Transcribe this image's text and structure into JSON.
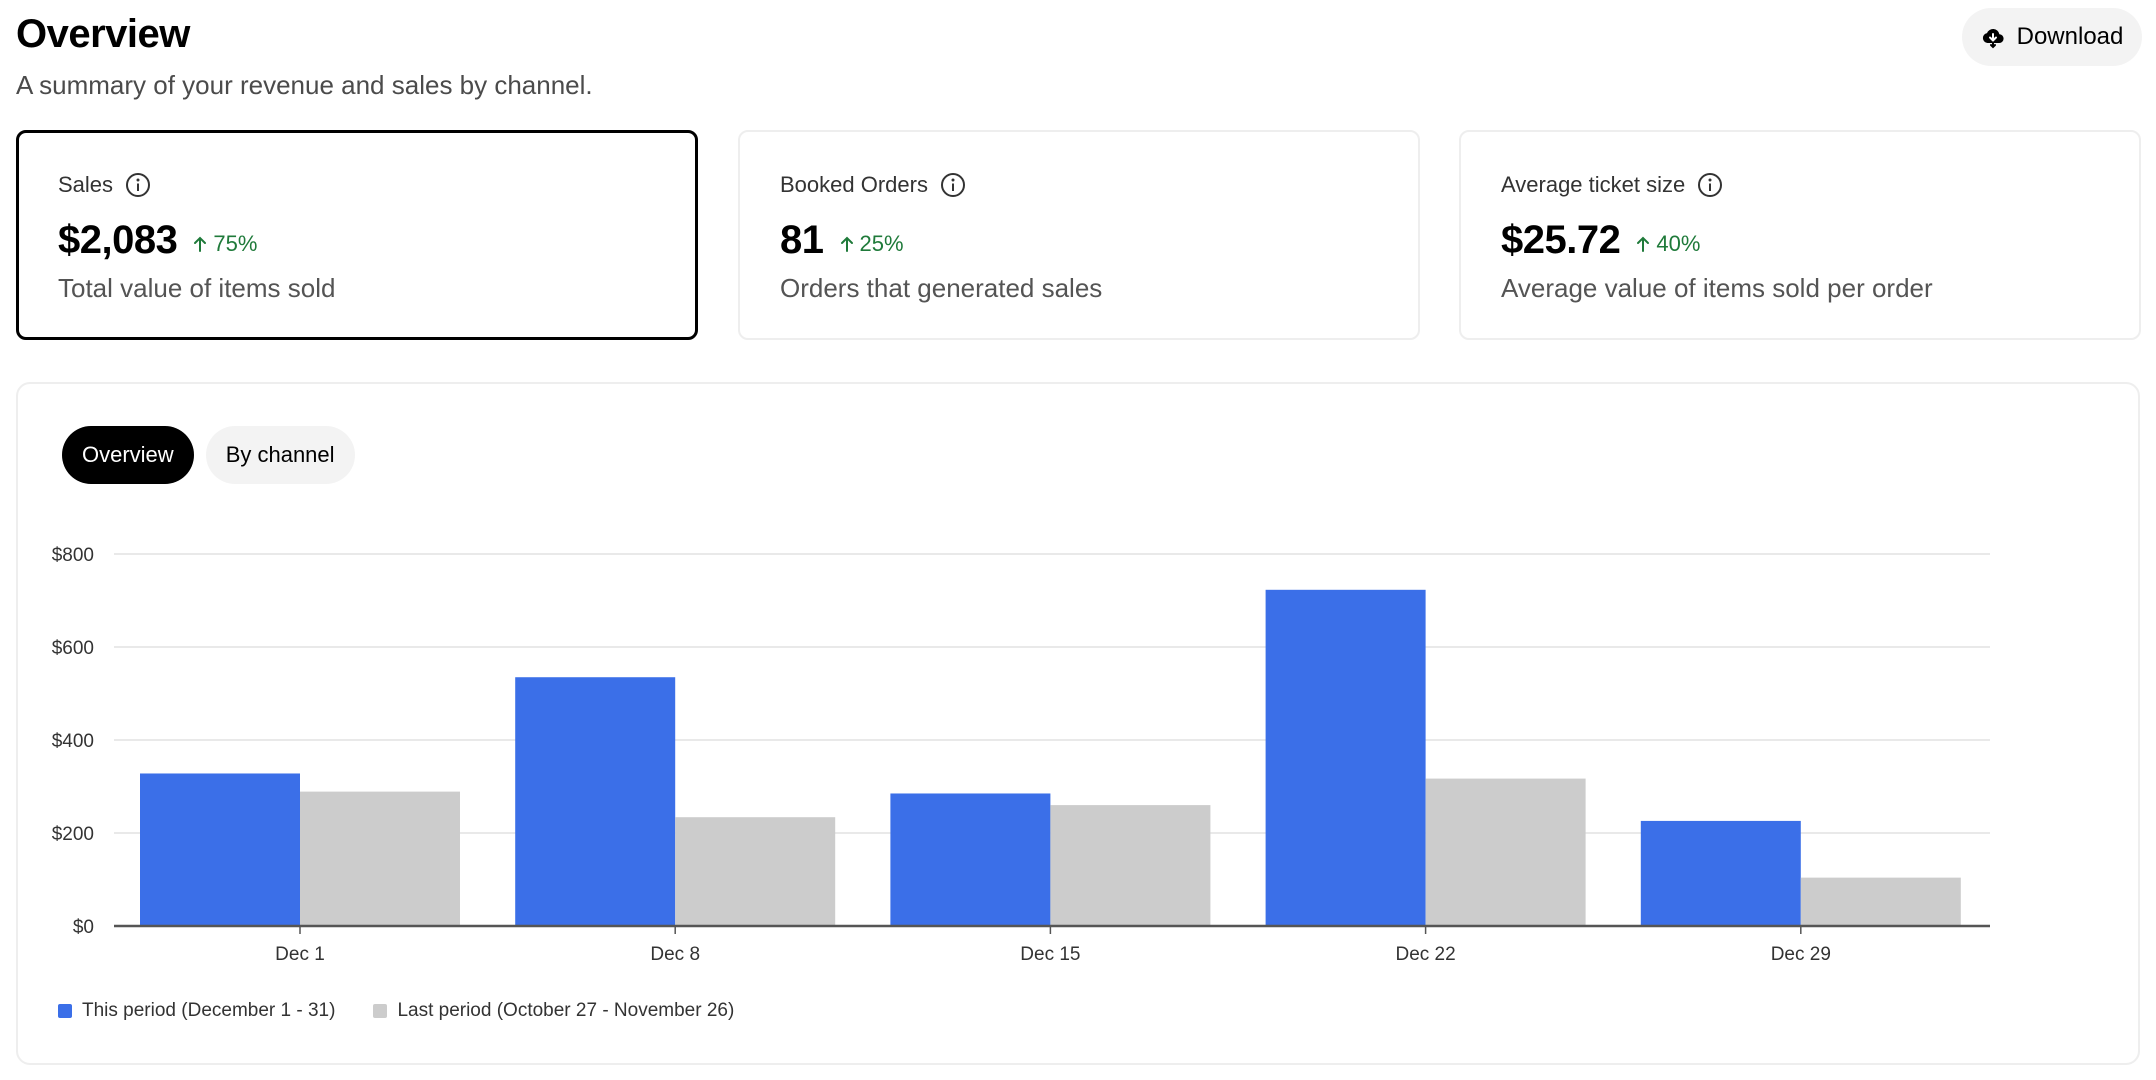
{
  "header": {
    "title": "Overview",
    "subtitle": "A summary of your revenue and sales by channel.",
    "download_label": "Download"
  },
  "cards": [
    {
      "label": "Sales",
      "value": "$2,083",
      "delta": "75%",
      "description": "Total value of items sold",
      "selected": true
    },
    {
      "label": "Booked Orders",
      "value": "81",
      "delta": "25%",
      "description": "Orders that generated sales",
      "selected": false
    },
    {
      "label": "Average ticket size",
      "value": "$25.72",
      "delta": "40%",
      "description": "Average value of items sold per order",
      "selected": false
    }
  ],
  "tabs": [
    {
      "label": "Overview",
      "active": true
    },
    {
      "label": "By channel",
      "active": false
    }
  ],
  "colors": {
    "this_period": "#3b6fe8",
    "last_period": "#cccccc",
    "delta_positive": "#1f7a3a",
    "gridline": "#e2e2e2",
    "axis": "#555555"
  },
  "chart_data": {
    "type": "bar",
    "categories": [
      "Dec 1",
      "Dec 8",
      "Dec 15",
      "Dec 22",
      "Dec 29"
    ],
    "series": [
      {
        "name": "This period (December 1 - 31)",
        "values": [
          328,
          535,
          285,
          723,
          226
        ],
        "color": "#3b6fe8"
      },
      {
        "name": "Last period (October 27 - November 26)",
        "values": [
          289,
          234,
          260,
          317,
          104
        ],
        "color": "#cccccc"
      }
    ],
    "ylim": [
      0,
      800
    ],
    "yticks": [
      0,
      200,
      400,
      600,
      800
    ],
    "ytick_labels": [
      "$0",
      "$200",
      "$400",
      "$600",
      "$800"
    ],
    "grid": true,
    "legend": "bottom-left"
  }
}
